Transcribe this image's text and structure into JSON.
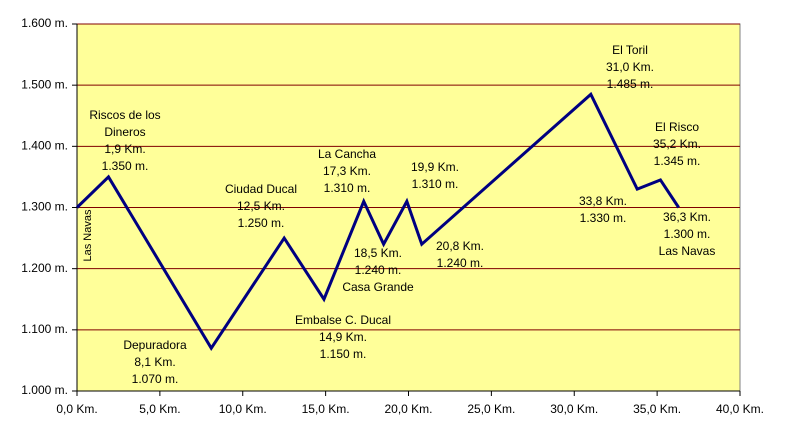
{
  "chart_data": {
    "type": "line",
    "x": [
      0,
      1.9,
      8.1,
      12.5,
      14.9,
      17.3,
      18.5,
      19.9,
      20.8,
      31.0,
      33.8,
      35.2,
      36.3
    ],
    "series": [
      {
        "color": "#000080",
        "values": [
          1300,
          1350,
          1070,
          1250,
          1150,
          1310,
          1240,
          1310,
          1240,
          1485,
          1330,
          1345,
          1300
        ],
        "x_labels": [
          null,
          "1,9 Km.",
          "8,1 Km.",
          "12,5 Km.",
          "14,9 Km.",
          "17,3 Km.",
          "18,5 Km.",
          "19,9 Km.",
          "20,8 Km.",
          "31,0 Km.",
          "33,8 Km.",
          "35,2 Km.",
          "36,3 Km."
        ],
        "value_labels": [
          null,
          "1.350 m.",
          "1.070 m.",
          "1.250 m.",
          "1.150 m.",
          "1.310 m.",
          "1.240 m.",
          "1.310 m.",
          "1.240 m.",
          "1.485 m.",
          "1.330 m.",
          "1.345 m.",
          "1.300 m."
        ],
        "point_names": [
          "Las Navas",
          "Riscos de los Dineros",
          "Depuradora",
          "Ciudad Ducal",
          "Embalse C. Ducal",
          "La Cancha",
          "Casa Grande",
          null,
          null,
          "El Toril",
          null,
          "El Risco",
          "Las Navas"
        ]
      }
    ],
    "xlim": [
      0,
      40
    ],
    "xticks": [
      {
        "value": 0,
        "label": "0,0 Km."
      },
      {
        "value": 5,
        "label": "5,0 Km."
      },
      {
        "value": 10,
        "label": "10,0 Km."
      },
      {
        "value": 15,
        "label": "15,0 Km."
      },
      {
        "value": 20,
        "label": "20,0 Km."
      },
      {
        "value": 25,
        "label": "25,0 Km."
      },
      {
        "value": 30,
        "label": "30,0 Km."
      },
      {
        "value": 35,
        "label": "35,0 Km."
      },
      {
        "value": 40,
        "label": "40,0 Km."
      }
    ],
    "ylim": [
      1000,
      1600
    ],
    "yticks": [
      {
        "value": 1000,
        "label": "1.000 m."
      },
      {
        "value": 1100,
        "label": "1.100 m."
      },
      {
        "value": 1200,
        "label": "1.200 m."
      },
      {
        "value": 1300,
        "label": "1.300 m."
      },
      {
        "value": 1400,
        "label": "1.400 m."
      },
      {
        "value": 1500,
        "label": "1.500 m."
      },
      {
        "value": 1600,
        "label": "1.600 m."
      }
    ],
    "grid": true,
    "grid_color": "#800000",
    "background": "#FFFF99"
  }
}
